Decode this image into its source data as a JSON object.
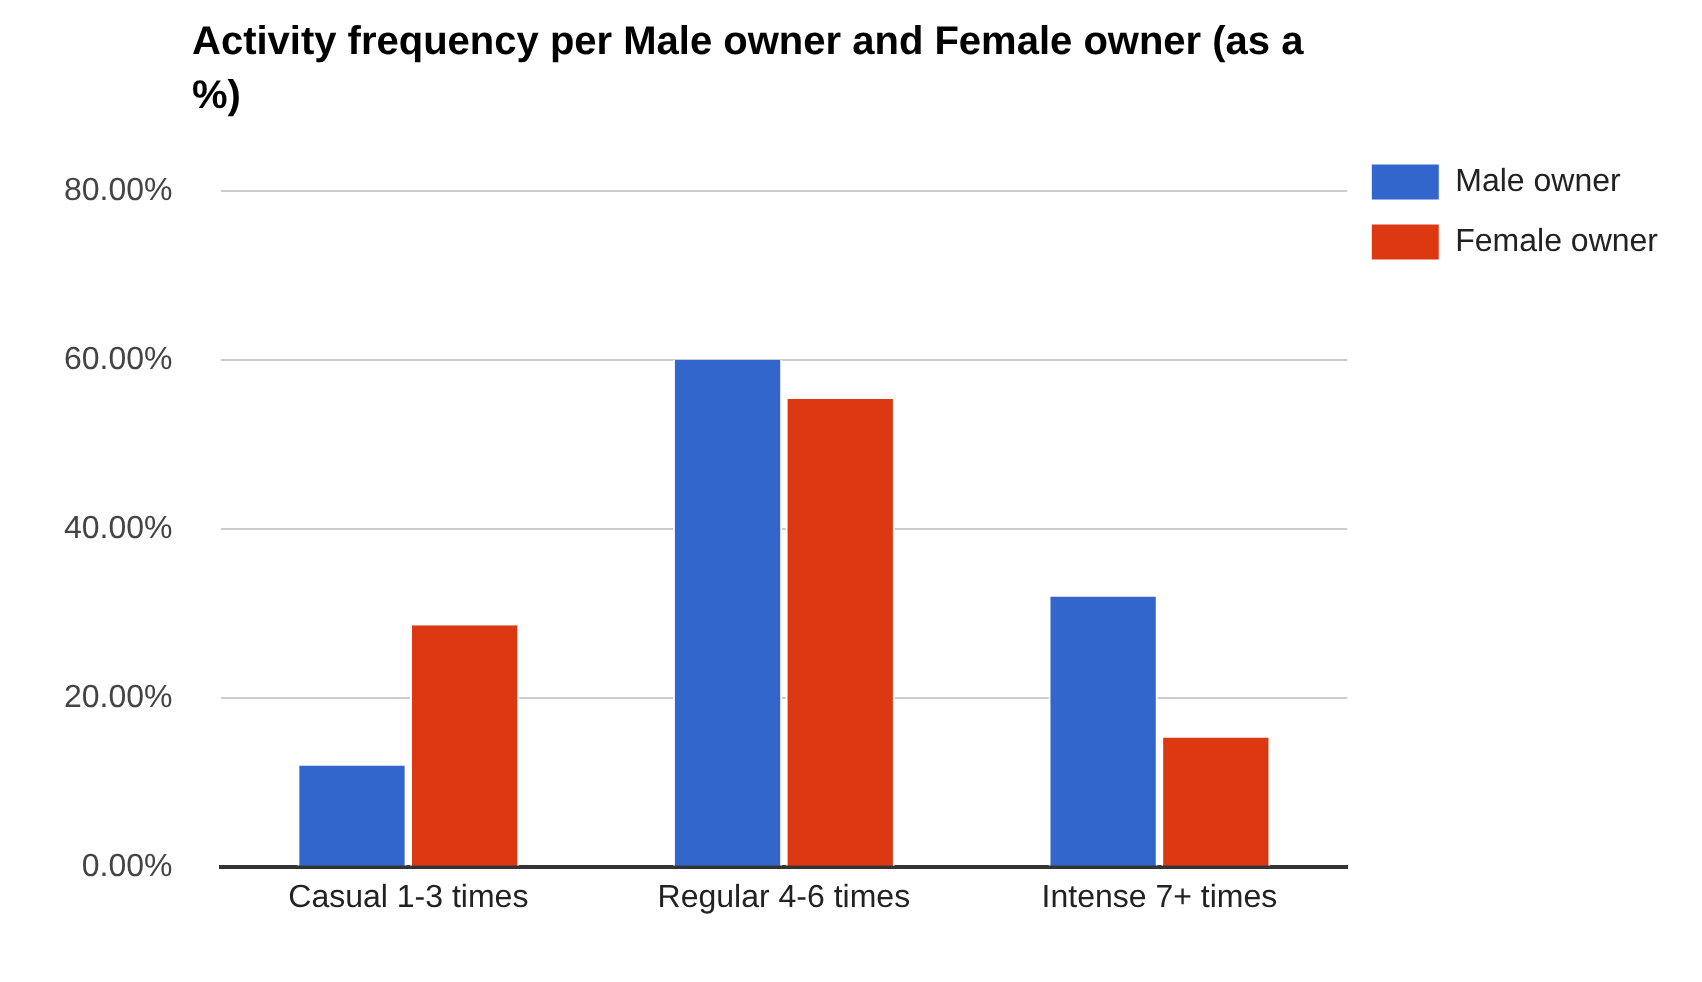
{
  "chart_data": {
    "type": "bar",
    "title": "Activity frequency per Male owner and Female owner (as a %)",
    "categories": [
      "Casual 1-3 times",
      "Regular 4-6 times",
      "Intense 7+ times"
    ],
    "series": [
      {
        "name": "Male owner",
        "color": "#3366cc",
        "values": [
          12,
          60,
          32
        ]
      },
      {
        "name": "Female owner",
        "color": "#dc3912",
        "values": [
          28.6,
          55.4,
          15.3
        ]
      }
    ],
    "ylim": [
      0,
      80
    ],
    "yticks": [
      {
        "value": 0,
        "label": "0.00%"
      },
      {
        "value": 20,
        "label": "20.00%"
      },
      {
        "value": 40,
        "label": "40.00%"
      },
      {
        "value": 60,
        "label": "60.00%"
      },
      {
        "value": 80,
        "label": "80.00%"
      }
    ],
    "grid": "y",
    "legend": "top right"
  }
}
